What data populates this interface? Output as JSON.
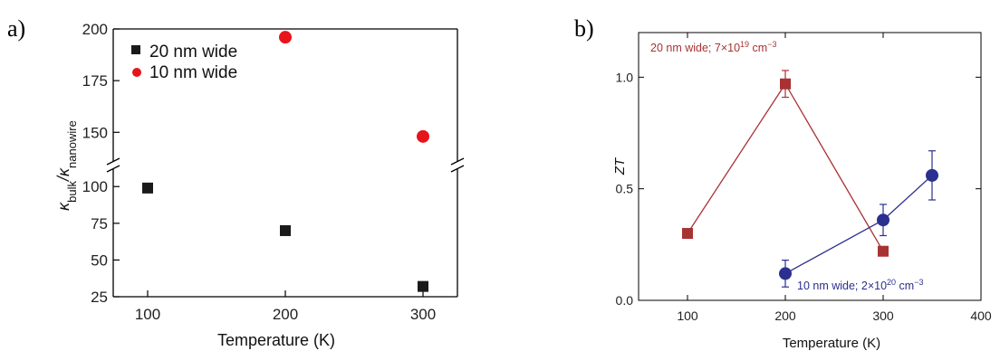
{
  "chart_data": [
    {
      "panel_label": "a)",
      "type": "scatter",
      "xlabel": "Temperature (K)",
      "ylabel": "κbulk/κnanowire",
      "ylabel_parts": {
        "base1": "κ",
        "sub1": "bulk",
        "sep": "/κ",
        "sub2": "nanowire"
      },
      "xlim": [
        75,
        325
      ],
      "xticks": [
        "100",
        "200",
        "300"
      ],
      "xtick_values": [
        100,
        200,
        300
      ],
      "y_lower_range": [
        25,
        110
      ],
      "y_upper_range": [
        137,
        200
      ],
      "y_axis_break": true,
      "yticks_lower": [
        "25",
        "50",
        "75",
        "100"
      ],
      "ytick_values_lower": [
        25,
        50,
        75,
        100
      ],
      "yticks_upper": [
        "150",
        "175",
        "200"
      ],
      "ytick_values_upper": [
        150,
        175,
        200
      ],
      "legend_position": "top-left",
      "series": [
        {
          "name": "20 nm wide",
          "marker": "square",
          "color": "#1a1a1a",
          "x": [
            100,
            200,
            300
          ],
          "y": [
            99,
            70,
            32
          ]
        },
        {
          "name": "10 nm wide",
          "marker": "circle",
          "color": "#e8141c",
          "x": [
            200,
            300
          ],
          "y": [
            196,
            148
          ]
        }
      ]
    },
    {
      "panel_label": "b)",
      "type": "line",
      "xlabel": "Temperature (K)",
      "ylabel": "ZT",
      "xlim": [
        50,
        400
      ],
      "ylim": [
        0,
        1.2
      ],
      "xticks": [
        "100",
        "200",
        "300",
        "400"
      ],
      "xtick_values": [
        100,
        200,
        300,
        400
      ],
      "yticks": [
        "0.0",
        "0.5",
        "1.0"
      ],
      "ytick_values": [
        0.0,
        0.5,
        1.0
      ],
      "series": [
        {
          "name": "20 nm wide; 7×10¹⁹ cm⁻³",
          "label_parts": {
            "pre": "20 nm wide; 7×10",
            "exp": "19",
            "mid": " cm",
            "exp2": "−3"
          },
          "marker": "square",
          "color": "#a83232",
          "x": [
            100,
            200,
            300
          ],
          "y": [
            0.3,
            0.97,
            0.22
          ],
          "error": [
            0,
            0.06,
            0
          ]
        },
        {
          "name": "10 nm wide; 2×10²⁰ cm⁻³",
          "label_parts": {
            "pre": "10 nm wide; 2×10",
            "exp": "20",
            "mid": " cm",
            "exp2": "−3"
          },
          "marker": "circle",
          "color": "#2b2f8f",
          "x": [
            200,
            300,
            350
          ],
          "y": [
            0.12,
            0.36,
            0.56
          ],
          "error": [
            0.06,
            0.07,
            0.11
          ]
        }
      ]
    }
  ]
}
